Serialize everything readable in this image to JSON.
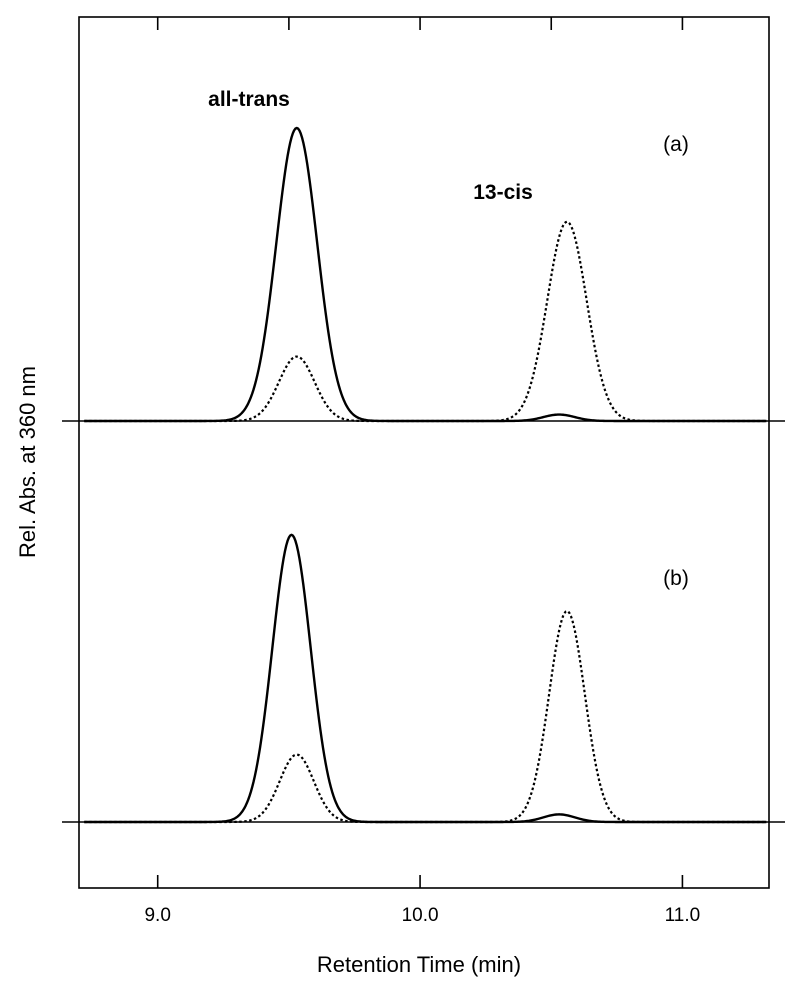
{
  "chart_data": {
    "type": "line",
    "title": "",
    "xlabel": "Retention Time (min)",
    "ylabel": "Rel. Abs. at 360 nm",
    "xlim": [
      8.7,
      11.33
    ],
    "x_ticks": [
      9.0,
      10.0,
      11.0
    ],
    "x_tick_labels": [
      "9.0",
      "10.0",
      "11.0"
    ],
    "minor_top_ticks": [
      9.5,
      10.5
    ],
    "peak_labels": [
      {
        "text": "all-trans",
        "x": 9.53
      },
      {
        "text": "13-cis",
        "x": 10.5
      }
    ],
    "panels": [
      {
        "label": "(a)",
        "series": [
          {
            "name": "solid",
            "style": "solid",
            "peaks": [
              {
                "center": 9.53,
                "height": 1.0,
                "width": 0.078
              },
              {
                "center": 10.53,
                "height": 0.022,
                "width": 0.06
              }
            ]
          },
          {
            "name": "dotted",
            "style": "dotted",
            "peaks": [
              {
                "center": 9.53,
                "height": 0.22,
                "width": 0.068
              },
              {
                "center": 10.56,
                "height": 0.68,
                "width": 0.075
              }
            ]
          }
        ]
      },
      {
        "label": "(b)",
        "series": [
          {
            "name": "solid",
            "style": "solid",
            "peaks": [
              {
                "center": 9.51,
                "height": 0.98,
                "width": 0.073
              },
              {
                "center": 10.53,
                "height": 0.026,
                "width": 0.06
              }
            ]
          },
          {
            "name": "dotted",
            "style": "dotted",
            "peaks": [
              {
                "center": 9.53,
                "height": 0.23,
                "width": 0.065
              },
              {
                "center": 10.56,
                "height": 0.72,
                "width": 0.068
              }
            ]
          }
        ]
      }
    ]
  }
}
